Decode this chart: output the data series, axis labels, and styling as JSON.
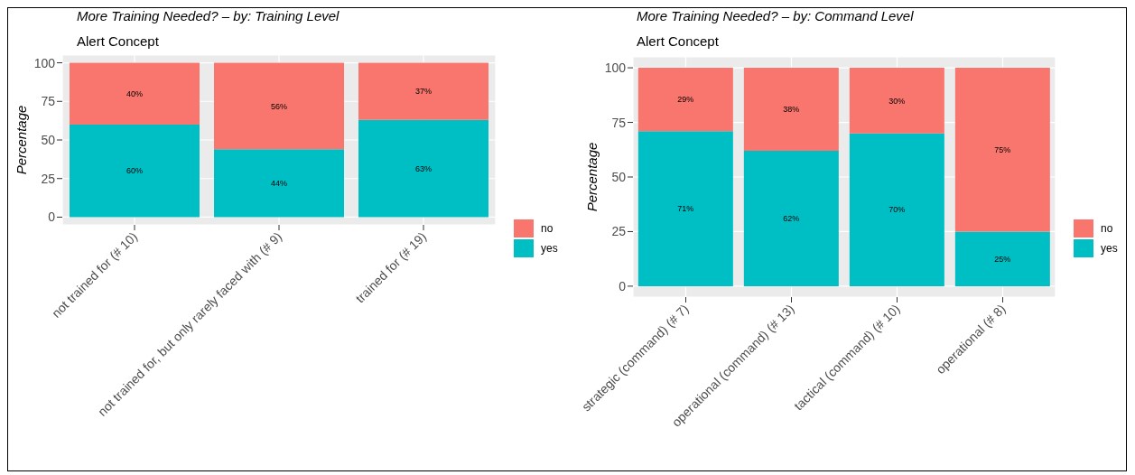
{
  "chart_data": [
    {
      "type": "bar",
      "title": "More Training Needed? –  by: Training Level",
      "subtitle": "Alert Concept",
      "ylabel": "Percentage",
      "categories": [
        "not trained for (# 10)",
        "not trained for, but only rarely faced with (# 9)",
        "trained for (# 19)"
      ],
      "stacked": true,
      "ylim": [
        -5,
        105
      ],
      "yticks": [
        0,
        25,
        50,
        75,
        100
      ],
      "grid": true,
      "legend": "right",
      "series": [
        {
          "name": "yes",
          "color": "#00bfc4",
          "values": [
            60,
            44,
            63
          ],
          "value_labels": [
            "60%",
            "44%",
            "63%"
          ]
        },
        {
          "name": "no",
          "color": "#f8766d",
          "values": [
            40,
            56,
            37
          ],
          "value_labels": [
            "40%",
            "56%",
            "37%"
          ]
        }
      ]
    },
    {
      "type": "bar",
      "title": "More Training Needed? –  by: Command Level",
      "subtitle": "Alert Concept",
      "ylabel": "Percentage",
      "categories": [
        "strategic (command) (# 7)",
        "operational (command) (# 13)",
        "tactical (command) (# 10)",
        "operational (# 8)"
      ],
      "stacked": true,
      "ylim": [
        -5,
        105
      ],
      "yticks": [
        0,
        25,
        50,
        75,
        100
      ],
      "grid": true,
      "legend": "right",
      "series": [
        {
          "name": "yes",
          "color": "#00bfc4",
          "values": [
            71,
            62,
            70,
            25
          ],
          "value_labels": [
            "71%",
            "62%",
            "70%",
            "25%"
          ]
        },
        {
          "name": "no",
          "color": "#f8766d",
          "values": [
            29,
            38,
            30,
            75
          ],
          "value_labels": [
            "29%",
            "38%",
            "30%",
            "75%"
          ]
        }
      ]
    }
  ]
}
